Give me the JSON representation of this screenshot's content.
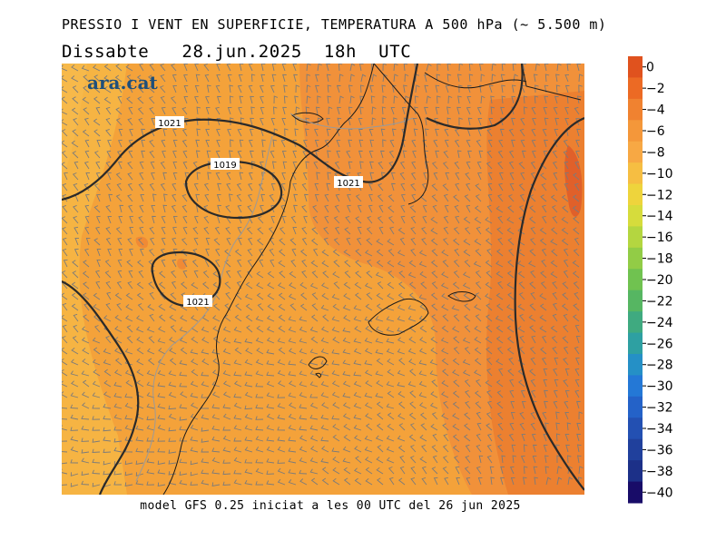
{
  "header": {
    "title": "PRESSIO I VENT EN SUPERFICIE, TEMPERATURA A 500 hPa (~ 5.500 m)",
    "subtitle": "Dissabte   28.jun.2025  18h  UTC"
  },
  "logo": {
    "text": "ara.cat",
    "color": "#1f4f7a"
  },
  "footer": {
    "text": "model GFS 0.25 iniciat a les 00 UTC del 26 jun 2025"
  },
  "isobar_labels": [
    "1021",
    "1019",
    "1021",
    "1021"
  ],
  "colorbar": {
    "labels": [
      "0",
      "−2",
      "−4",
      "−6",
      "−8",
      "−10",
      "−12",
      "−14",
      "−16",
      "−18",
      "−20",
      "−22",
      "−24",
      "−26",
      "−28",
      "−30",
      "−32",
      "−34",
      "−36",
      "−38",
      "−40"
    ],
    "colors": [
      "#e0521e",
      "#ec6a24",
      "#f08230",
      "#f4973a",
      "#f7a844",
      "#f6be42",
      "#eed43c",
      "#d6dc3c",
      "#b4d640",
      "#92cc46",
      "#70c250",
      "#56b662",
      "#3faa80",
      "#2ea0a2",
      "#2590c6",
      "#2478d6",
      "#2462c8",
      "#2350b2",
      "#20409c",
      "#1c3088",
      "#180c68"
    ]
  },
  "colors": {
    "field_orange": "#f4a23a",
    "field_yellow": "#f6b443",
    "field_warm": "#f18e3a",
    "field_hot": "#e9782f",
    "isobar": "#2a2a2a",
    "barb": "#7b7b7b"
  }
}
